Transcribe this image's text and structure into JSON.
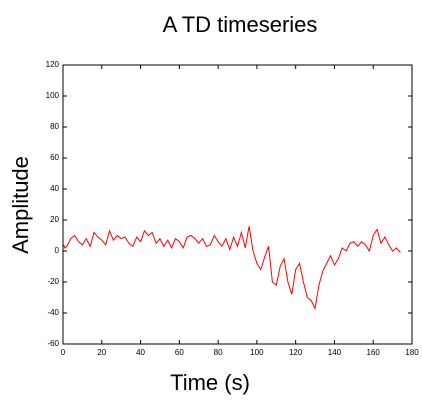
{
  "chart_data": {
    "type": "line",
    "title": "A TD timeseries",
    "x_label": "Time (s)",
    "y_label": "Amplitude",
    "x": [
      0,
      1,
      2,
      4,
      6,
      8,
      10,
      12,
      14,
      16,
      18,
      20,
      22,
      24,
      26,
      28,
      30,
      32,
      34,
      36,
      38,
      40,
      42,
      44,
      46,
      48,
      50,
      52,
      54,
      56,
      58,
      60,
      62,
      64,
      66,
      68,
      70,
      72,
      74,
      76,
      78,
      80,
      82,
      84,
      86,
      88,
      90,
      92,
      94,
      96,
      98,
      100,
      102,
      104,
      106,
      108,
      110,
      112,
      114,
      116,
      118,
      120,
      122,
      124,
      126,
      128,
      130,
      132,
      134,
      136,
      138,
      140,
      142,
      144,
      146,
      148,
      150,
      152,
      154,
      156,
      158,
      160,
      162,
      164,
      166,
      168,
      170,
      172,
      174
    ],
    "values": [
      5,
      2,
      3,
      8,
      10,
      6,
      4,
      8,
      3,
      12,
      9,
      7,
      4,
      13,
      7,
      10,
      8,
      9,
      5,
      3,
      9,
      6,
      13,
      10,
      12,
      5,
      8,
      3,
      7,
      2,
      8,
      6,
      2,
      9,
      10,
      8,
      5,
      8,
      3,
      4,
      10,
      6,
      3,
      8,
      1,
      9,
      3,
      12,
      2,
      16,
      0,
      -8,
      -12,
      -4,
      3,
      -20,
      -22,
      -10,
      -5,
      -20,
      -28,
      -12,
      -8,
      -20,
      -30,
      -32,
      -37,
      -22,
      -13,
      -8,
      -3,
      -9,
      -5,
      2,
      0,
      5,
      6,
      3,
      6,
      4,
      0,
      10,
      14,
      5,
      9,
      4,
      0,
      2,
      -1
    ],
    "color": "#ff0000",
    "xlim": [
      0,
      180
    ],
    "xticks": [
      0,
      20,
      40,
      60,
      80,
      100,
      120,
      140,
      160,
      180
    ],
    "ylim": [
      -60,
      120
    ],
    "yticks": [
      -60,
      -40,
      -20,
      0,
      20,
      40,
      60,
      80,
      100,
      120
    ]
  }
}
